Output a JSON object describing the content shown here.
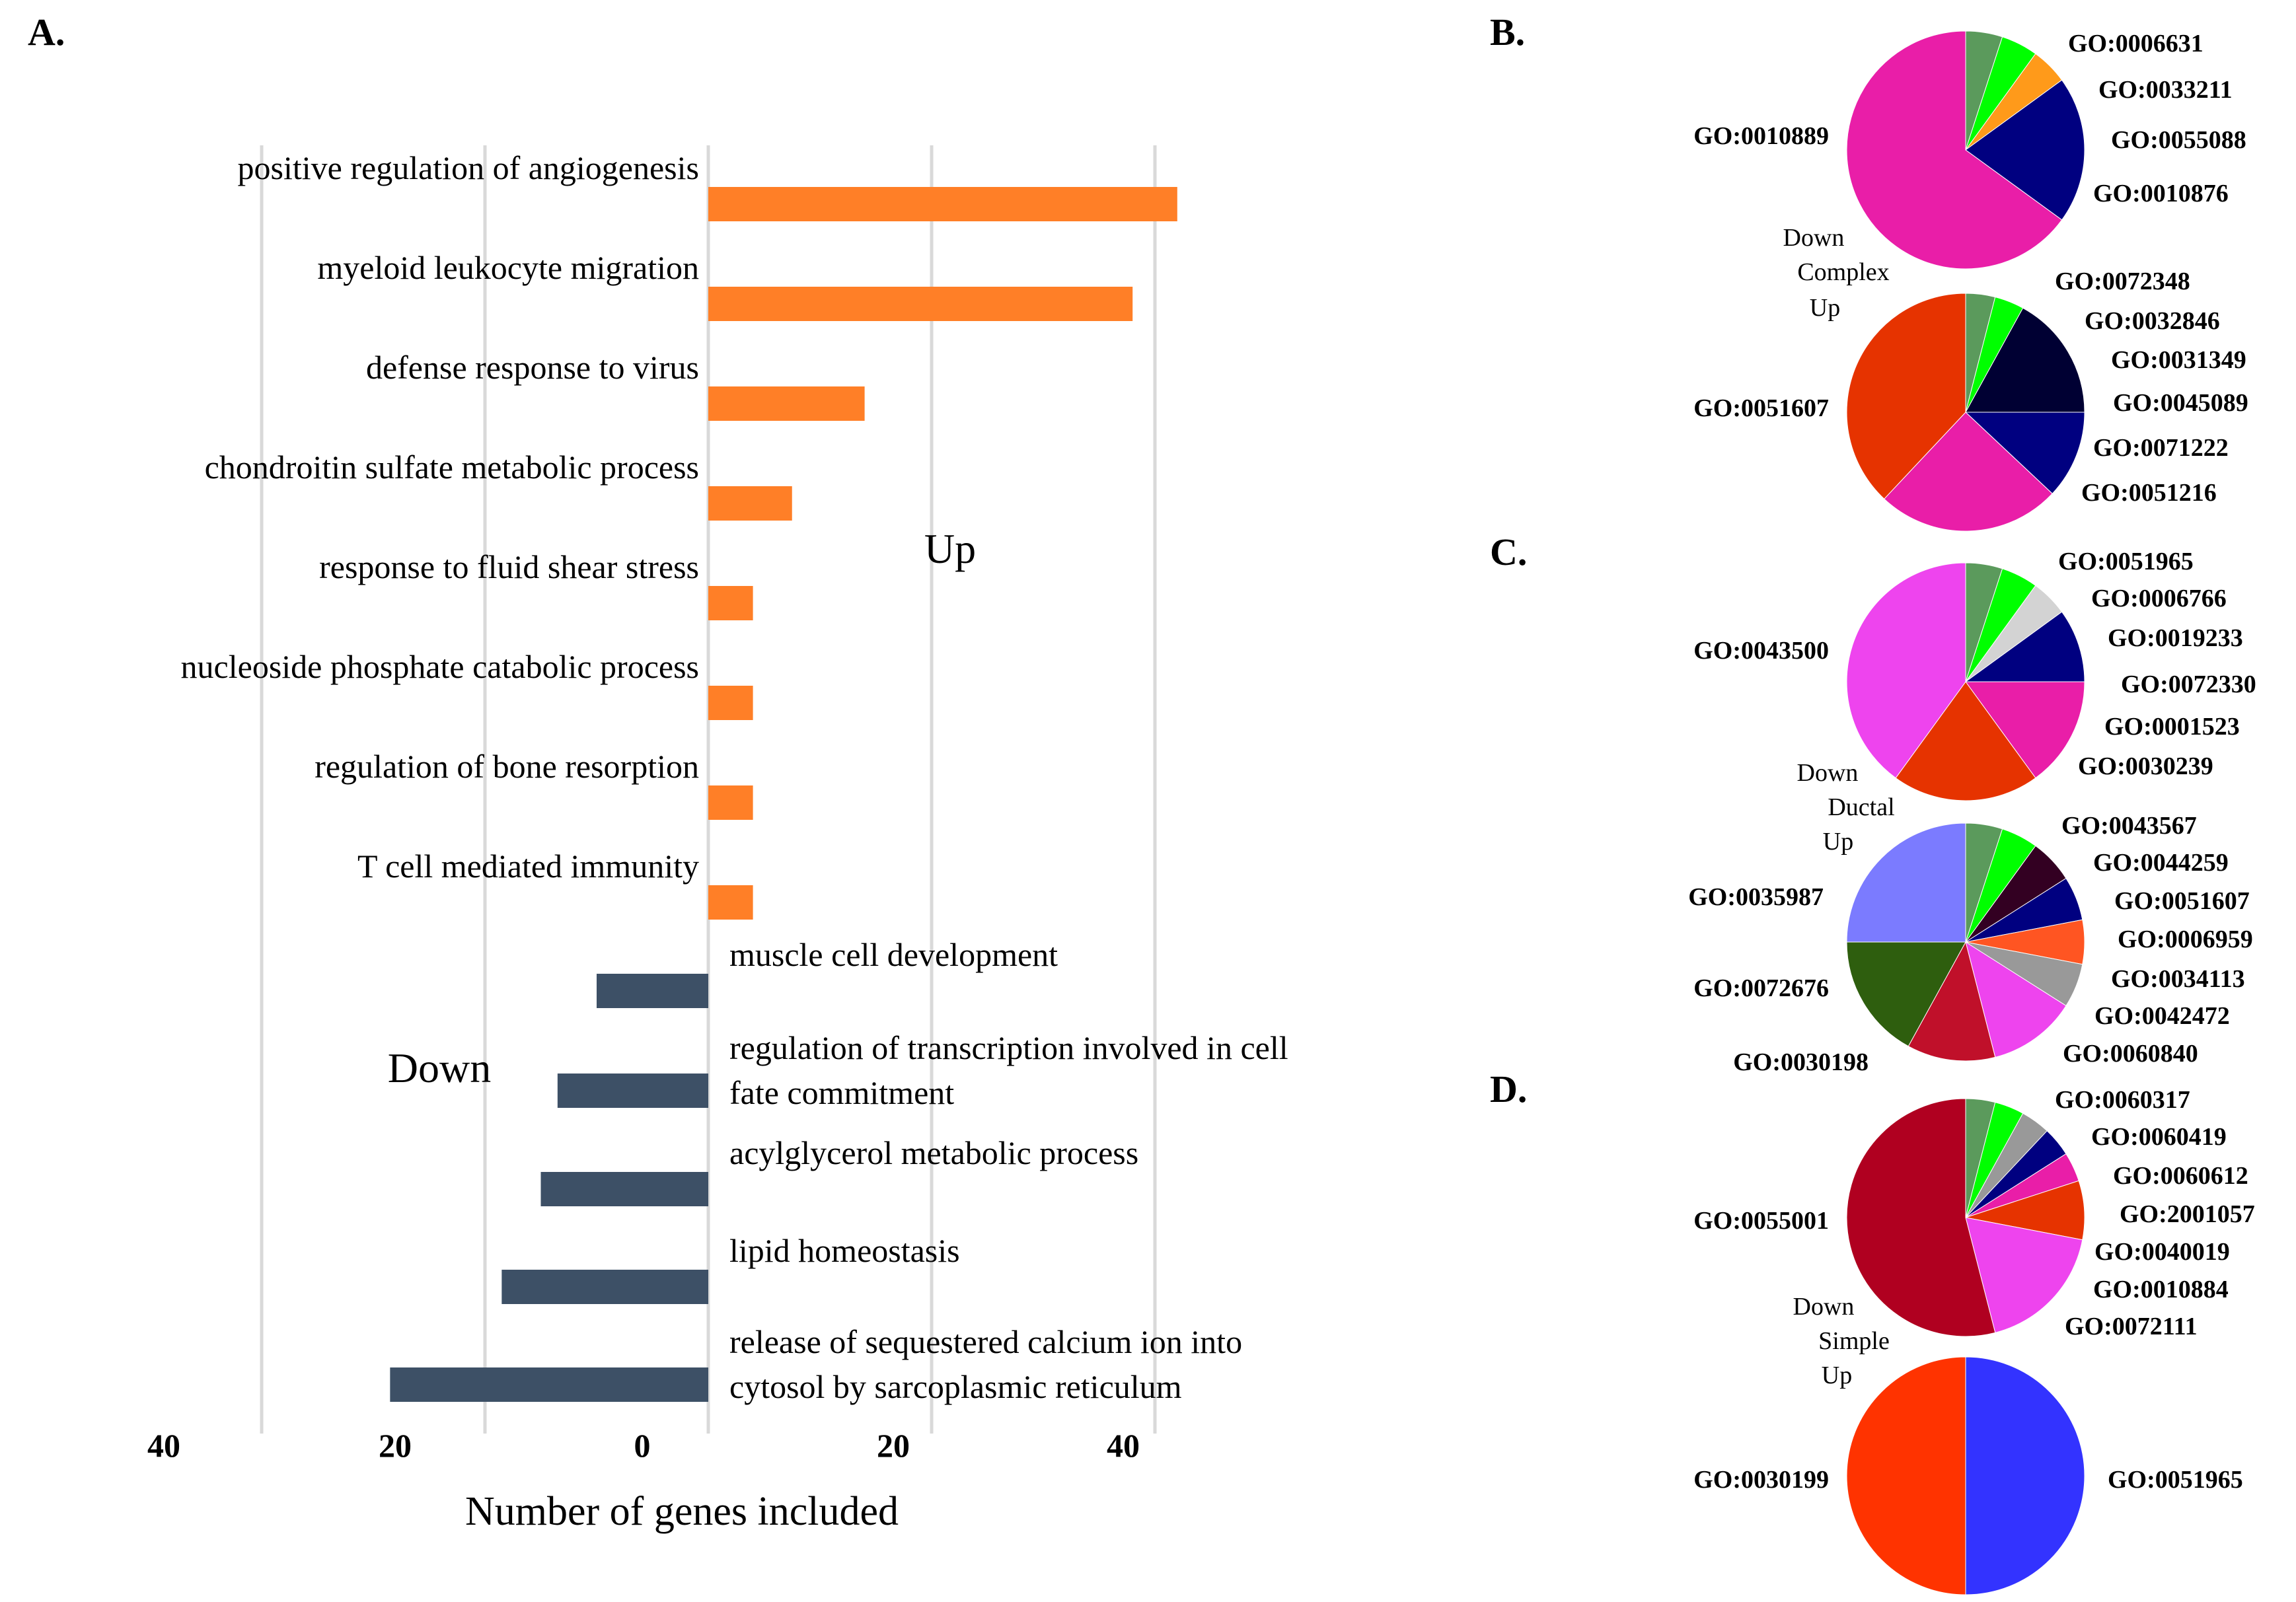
{
  "chart_data": [
    {
      "panel": "A.",
      "type": "bar",
      "orientation": "horizontal-diverging",
      "xlabel": "Number of genes included",
      "up_label": "Up",
      "down_label": "Down",
      "xlim": [
        -50,
        50
      ],
      "tick_labels": [
        "40",
        "20",
        "0",
        "20",
        "40"
      ],
      "tick_values": [
        -40,
        -20,
        0,
        20,
        40
      ],
      "grid": true,
      "series": [
        {
          "name": "Up",
          "color": "#FF7F27",
          "categories": [
            "positive regulation of angiogenesis",
            "myeloid leukocyte migration",
            "defense response to virus",
            "chondroitin sulfate metabolic process",
            "response to fluid shear stress",
            "nucleoside phosphate catabolic process",
            "regulation of bone resorption",
            "T cell mediated immunity"
          ],
          "values": [
            42,
            38,
            14,
            7.5,
            4,
            4,
            4,
            4
          ]
        },
        {
          "name": "Down",
          "color": "#3D5066",
          "categories": [
            [
              "muscle cell development"
            ],
            [
              "regulation of transcription involved in cell",
              "fate commitment"
            ],
            [
              "acylglycerol metabolic process"
            ],
            [
              "lipid homeostasis"
            ],
            [
              "release of sequestered calcium ion into",
              "cytosol by sarcoplasmic reticulum"
            ]
          ],
          "values": [
            10,
            13.5,
            15,
            18.5,
            28.5
          ]
        }
      ]
    },
    {
      "panel": "B.",
      "type": "pie",
      "group": "Complex",
      "middle_label": [
        "Down",
        "Complex",
        "Up"
      ],
      "pies": [
        {
          "direction": "Down",
          "slices": [
            {
              "label": "GO:0006631",
              "value": 5,
              "color": "#5B9A5C"
            },
            {
              "label": "GO:0033211",
              "value": 5,
              "color": "#00FF00"
            },
            {
              "label": "GO:0055088",
              "value": 5,
              "color": "#FF9A1A"
            },
            {
              "label": "GO:0010876",
              "value": 20,
              "color": "#000080"
            },
            {
              "label": "GO:0010889",
              "value": 65,
              "color": "#E91EA8"
            }
          ]
        },
        {
          "direction": "Up",
          "slices": [
            {
              "label": "GO:0072348",
              "value": 4,
              "color": "#5B9A5C"
            },
            {
              "label": "GO:0032846",
              "value": 4,
              "color": "#00FF00"
            },
            {
              "label": "GO:0031349",
              "value": 17,
              "color": "#000033"
            },
            {
              "label": "GO:0045089",
              "value": 12,
              "color": "#000080"
            },
            {
              "label": "GO:0071222",
              "value": 0.01,
              "color": "#E91EA8"
            },
            {
              "label": "GO:0051216",
              "value": 25,
              "color": "#E91EA8"
            },
            {
              "label": "GO:0051607",
              "value": 38,
              "color": "#E63300"
            }
          ]
        }
      ]
    },
    {
      "panel": "C.",
      "type": "pie",
      "group": "Ductal",
      "middle_label": [
        "Down",
        "Ductal",
        "Up"
      ],
      "pies": [
        {
          "direction": "Down",
          "slices": [
            {
              "label": "GO:0051965",
              "value": 5,
              "color": "#5B9A5C"
            },
            {
              "label": "GO:0006766",
              "value": 5,
              "color": "#00FF00"
            },
            {
              "label": "GO:0019233",
              "value": 5,
              "color": "#D3D3D3"
            },
            {
              "label": "GO:0072330",
              "value": 10,
              "color": "#000080"
            },
            {
              "label": "GO:0001523",
              "value": 15,
              "color": "#E91EA8"
            },
            {
              "label": "GO:0030239",
              "value": 20,
              "color": "#E63300"
            },
            {
              "label": "GO:0043500",
              "value": 40,
              "color": "#EE44EE"
            }
          ]
        },
        {
          "direction": "Up",
          "slices": [
            {
              "label": "GO:0043567",
              "value": 5,
              "color": "#5B9A5C"
            },
            {
              "label": "GO:0044259",
              "value": 5,
              "color": "#00FF00"
            },
            {
              "label": "GO:0051607",
              "value": 6,
              "color": "#330022"
            },
            {
              "label": "GO:0006959",
              "value": 6,
              "color": "#000080"
            },
            {
              "label": "GO:0034113",
              "value": 6,
              "color": "#FF5522"
            },
            {
              "label": "GO:0042472",
              "value": 6,
              "color": "#999999"
            },
            {
              "label": "GO:0060840",
              "value": 12,
              "color": "#EE44EE"
            },
            {
              "label": "GO:0030198",
              "value": 12,
              "color": "#C0102A"
            },
            {
              "label": "GO:0072676",
              "value": 17,
              "color": "#2E5E0E"
            },
            {
              "label": "GO:0035987",
              "value": 25,
              "color": "#7B7BFF"
            }
          ]
        }
      ]
    },
    {
      "panel": "D.",
      "type": "pie",
      "group": "Simple",
      "middle_label": [
        "Down",
        "Simple",
        "Up"
      ],
      "pies": [
        {
          "direction": "Down",
          "slices": [
            {
              "label": "GO:0060317",
              "value": 4,
              "color": "#5B9A5C"
            },
            {
              "label": "GO:0060419",
              "value": 4,
              "color": "#00FF00"
            },
            {
              "label": "GO:0060612",
              "value": 4,
              "color": "#999999"
            },
            {
              "label": "GO:2001057",
              "value": 4,
              "color": "#000080"
            },
            {
              "label": "GO:0040019",
              "value": 4,
              "color": "#E91EA8"
            },
            {
              "label": "GO:0010884",
              "value": 8,
              "color": "#E63300"
            },
            {
              "label": "GO:0072111",
              "value": 18,
              "color": "#EE44EE"
            },
            {
              "label": "GO:0055001",
              "value": 54,
              "color": "#B00020"
            }
          ]
        },
        {
          "direction": "Up",
          "slices": [
            {
              "label": "GO:0051965",
              "value": 50,
              "color": "#3333FF"
            },
            {
              "label": "GO:0030199",
              "value": 50,
              "color": "#FF3300"
            }
          ]
        }
      ]
    }
  ]
}
